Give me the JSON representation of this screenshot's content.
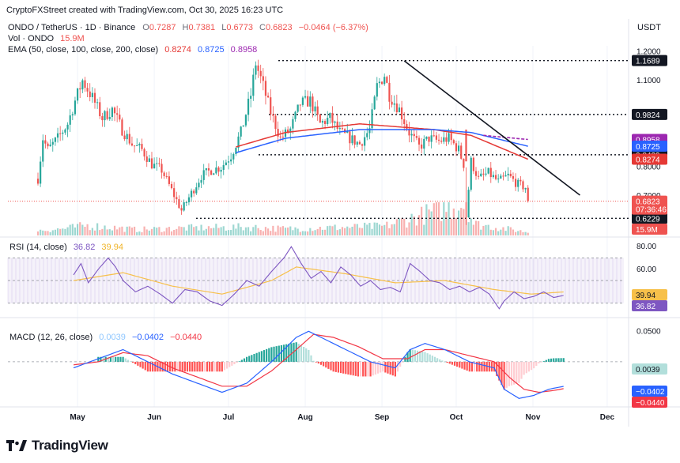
{
  "header": {
    "attribution": "CryptoFXStreet created with TradingView.com, Oct 30, 2025 16:23 UTC",
    "symbol": "ONDO / TetherUS · 1D · Binance",
    "ohlc": [
      {
        "k": "O",
        "v": "0.7287"
      },
      {
        "k": "H",
        "v": "0.7381"
      },
      {
        "k": "L",
        "v": "0.6773"
      },
      {
        "k": "C",
        "v": "0.6823"
      }
    ],
    "change": "−0.0464 (−6.37%)",
    "vol_label": "Vol · ONDO",
    "vol_value": "15.9M",
    "ema_label": "EMA (50, close, 100, close, 200, close)",
    "ema_values": [
      "0.8274",
      "0.8725",
      "0.8958"
    ],
    "currency": "USDT"
  },
  "colors": {
    "up": "#26a69a",
    "down": "#ef5350",
    "ema50": "#e53935",
    "ema100": "#2962ff",
    "ema200": "#9c27b0",
    "rsi": "#7e57c2",
    "rsi_ma": "#f7c04a",
    "macd": "#2962ff",
    "signal": "#f23645"
  },
  "brand": {
    "name": "TradingView",
    "icon": "tradingview-logo-icon"
  },
  "chart_data": [
    {
      "type": "candlestick",
      "name": "ONDO / TetherUS",
      "x_start": "2025-04-15",
      "x_end": "2025-10-30",
      "x_ticks": [
        "May",
        "Jun",
        "Jul",
        "Aug",
        "Sep",
        "Oct",
        "Nov",
        "Dec"
      ],
      "y_ticks": [
        "1.2000",
        "1.1000",
        "0.8000",
        "0.7000"
      ],
      "y_range": [
        0.58,
        1.22
      ],
      "close_path": [
        [
          0,
          0.76
        ],
        [
          2,
          0.9
        ],
        [
          4,
          0.86
        ],
        [
          8,
          0.9
        ],
        [
          12,
          0.95
        ],
        [
          15,
          1.03
        ],
        [
          18,
          1.1
        ],
        [
          22,
          1.04
        ],
        [
          26,
          0.97
        ],
        [
          30,
          1.0
        ],
        [
          34,
          0.93
        ],
        [
          38,
          0.88
        ],
        [
          42,
          0.86
        ],
        [
          46,
          0.81
        ],
        [
          50,
          0.79
        ],
        [
          54,
          0.72
        ],
        [
          58,
          0.65
        ],
        [
          62,
          0.71
        ],
        [
          66,
          0.77
        ],
        [
          70,
          0.79
        ],
        [
          74,
          0.8
        ],
        [
          78,
          0.84
        ],
        [
          82,
          0.92
        ],
        [
          86,
          1.05
        ],
        [
          88,
          1.16
        ],
        [
          91,
          1.08
        ],
        [
          94,
          0.99
        ],
        [
          98,
          0.9
        ],
        [
          102,
          0.93
        ],
        [
          106,
          1.02
        ],
        [
          110,
          1.03
        ],
        [
          114,
          0.95
        ],
        [
          118,
          0.97
        ],
        [
          122,
          0.92
        ],
        [
          126,
          0.9
        ],
        [
          130,
          0.88
        ],
        [
          134,
          0.93
        ],
        [
          137,
          1.08
        ],
        [
          140,
          1.12
        ],
        [
          142,
          1.05
        ],
        [
          146,
          1.0
        ],
        [
          150,
          0.92
        ],
        [
          154,
          0.87
        ],
        [
          158,
          0.9
        ],
        [
          162,
          0.89
        ],
        [
          166,
          0.9
        ],
        [
          170,
          0.86
        ],
        [
          172,
          0.81
        ],
        [
          173,
          0.63
        ],
        [
          175,
          0.82
        ],
        [
          178,
          0.76
        ],
        [
          182,
          0.78
        ],
        [
          186,
          0.75
        ],
        [
          190,
          0.77
        ],
        [
          194,
          0.74
        ],
        [
          197,
          0.73
        ],
        [
          198,
          0.68
        ]
      ],
      "last_close": 0.6823,
      "levels": [
        {
          "label": "1.1689",
          "value": 1.1689
        },
        {
          "label": "0.9824",
          "value": 0.9824
        },
        {
          "label": "0.8429",
          "value": 0.8429
        },
        {
          "label": "0.6229",
          "value": 0.6229
        }
      ],
      "trendline": {
        "from": [
          "2025-09-10",
          1.168
        ],
        "to": [
          "2025-11-20",
          0.703
        ]
      },
      "ema": [
        {
          "name": "EMA 50",
          "last": 0.8274,
          "path": [
            [
              80,
              0.87
            ],
            [
              100,
              0.92
            ],
            [
              130,
              0.95
            ],
            [
              160,
              0.93
            ],
            [
              175,
              0.91
            ],
            [
              198,
              0.8274
            ]
          ]
        },
        {
          "name": "EMA 100",
          "last": 0.8725,
          "path": [
            [
              80,
              0.85
            ],
            [
              100,
              0.9
            ],
            [
              130,
              0.93
            ],
            [
              160,
              0.93
            ],
            [
              175,
              0.92
            ],
            [
              198,
              0.8725
            ]
          ]
        },
        {
          "name": "EMA 200",
          "last": 0.8958,
          "path": [
            [
              180,
              0.91
            ],
            [
              198,
              0.8958
            ]
          ]
        }
      ],
      "price_tags": [
        {
          "label": "0.8958",
          "value": 0.8958,
          "color": "#9c27b0"
        },
        {
          "label": "0.8725",
          "value": 0.8725,
          "color": "#2962ff"
        },
        {
          "label": "0.8274",
          "value": 0.8274,
          "color": "#e53935"
        },
        {
          "label": "0.6823",
          "value": 0.6823,
          "color": "#ef5350",
          "sub": "07:36:46"
        }
      ],
      "volume": {
        "last": "15.9M",
        "unit": "M",
        "profile": [
          [
            0,
            6
          ],
          [
            10,
            8
          ],
          [
            20,
            12
          ],
          [
            40,
            7
          ],
          [
            60,
            9
          ],
          [
            85,
            10
          ],
          [
            100,
            8
          ],
          [
            140,
            11
          ],
          [
            173,
            40
          ],
          [
            176,
            14
          ],
          [
            198,
            4
          ]
        ]
      }
    },
    {
      "type": "line",
      "name": "RSI",
      "label": "RSI (14, close)",
      "values_label": [
        "36.82",
        "39.94"
      ],
      "y_ticks": [
        "80.00",
        "60.00"
      ],
      "y_range": [
        20,
        85
      ],
      "band": [
        30,
        70
      ],
      "rsi_path": [
        [
          0,
          55
        ],
        [
          3,
          65
        ],
        [
          6,
          48
        ],
        [
          10,
          60
        ],
        [
          14,
          70
        ],
        [
          17,
          62
        ],
        [
          20,
          50
        ],
        [
          25,
          40
        ],
        [
          30,
          45
        ],
        [
          35,
          38
        ],
        [
          40,
          30
        ],
        [
          45,
          42
        ],
        [
          50,
          40
        ],
        [
          55,
          32
        ],
        [
          60,
          28
        ],
        [
          65,
          38
        ],
        [
          70,
          50
        ],
        [
          75,
          45
        ],
        [
          80,
          58
        ],
        [
          85,
          70
        ],
        [
          88,
          80
        ],
        [
          92,
          65
        ],
        [
          96,
          52
        ],
        [
          100,
          58
        ],
        [
          104,
          48
        ],
        [
          108,
          62
        ],
        [
          112,
          55
        ],
        [
          116,
          45
        ],
        [
          120,
          50
        ],
        [
          124,
          42
        ],
        [
          128,
          44
        ],
        [
          132,
          40
        ],
        [
          136,
          65
        ],
        [
          140,
          58
        ],
        [
          144,
          50
        ],
        [
          148,
          48
        ],
        [
          152,
          42
        ],
        [
          156,
          45
        ],
        [
          160,
          40
        ],
        [
          164,
          44
        ],
        [
          168,
          38
        ],
        [
          172,
          25
        ],
        [
          174,
          32
        ],
        [
          178,
          40
        ],
        [
          182,
          34
        ],
        [
          186,
          36
        ],
        [
          190,
          40
        ],
        [
          194,
          35
        ],
        [
          198,
          36.82
        ]
      ],
      "ma_path": [
        [
          0,
          50
        ],
        [
          20,
          57
        ],
        [
          40,
          45
        ],
        [
          60,
          38
        ],
        [
          80,
          50
        ],
        [
          90,
          62
        ],
        [
          110,
          56
        ],
        [
          130,
          48
        ],
        [
          150,
          50
        ],
        [
          170,
          42
        ],
        [
          185,
          38
        ],
        [
          198,
          39.94
        ]
      ]
    },
    {
      "type": "line",
      "name": "MACD",
      "label": "MACD (12, 26, close)",
      "values_label": [
        "0.0039",
        "−0.0402",
        "−0.0440"
      ],
      "y_ticks": [
        "0.0500"
      ],
      "y_range": [
        -0.07,
        0.062
      ],
      "macd_path": [
        [
          0,
          -0.01
        ],
        [
          10,
          0.005
        ],
        [
          20,
          0.02
        ],
        [
          30,
          0.0
        ],
        [
          40,
          -0.02
        ],
        [
          50,
          -0.035
        ],
        [
          60,
          -0.05
        ],
        [
          70,
          -0.035
        ],
        [
          80,
          0.0
        ],
        [
          90,
          0.04
        ],
        [
          95,
          0.05
        ],
        [
          100,
          0.04
        ],
        [
          110,
          0.02
        ],
        [
          120,
          0.0
        ],
        [
          130,
          -0.01
        ],
        [
          136,
          0.02
        ],
        [
          142,
          0.03
        ],
        [
          150,
          0.02
        ],
        [
          160,
          0.0
        ],
        [
          170,
          -0.01
        ],
        [
          174,
          -0.045
        ],
        [
          180,
          -0.06
        ],
        [
          186,
          -0.055
        ],
        [
          192,
          -0.045
        ],
        [
          198,
          -0.0402
        ]
      ],
      "signal_path": [
        [
          0,
          -0.005
        ],
        [
          10,
          0.0
        ],
        [
          20,
          0.015
        ],
        [
          30,
          0.01
        ],
        [
          40,
          -0.01
        ],
        [
          50,
          -0.025
        ],
        [
          60,
          -0.04
        ],
        [
          70,
          -0.04
        ],
        [
          80,
          -0.015
        ],
        [
          90,
          0.02
        ],
        [
          97,
          0.045
        ],
        [
          105,
          0.04
        ],
        [
          115,
          0.025
        ],
        [
          125,
          0.005
        ],
        [
          135,
          0.005
        ],
        [
          142,
          0.02
        ],
        [
          150,
          0.02
        ],
        [
          160,
          0.01
        ],
        [
          170,
          0.0
        ],
        [
          176,
          -0.025
        ],
        [
          182,
          -0.045
        ],
        [
          188,
          -0.05
        ],
        [
          194,
          -0.047
        ],
        [
          198,
          -0.044
        ]
      ],
      "histogram_last": 0.0039
    }
  ]
}
